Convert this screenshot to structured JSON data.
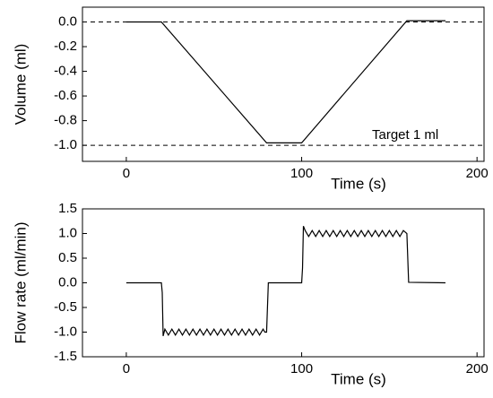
{
  "chart_data": [
    {
      "type": "line",
      "y_label": "Volume (ml)",
      "x_label": "Time (s)",
      "x": [
        0,
        20,
        80,
        100,
        160,
        182
      ],
      "values": [
        0,
        0,
        -0.98,
        -0.98,
        0.01,
        0.01
      ],
      "color": "#000000",
      "hlines": [
        0,
        -1
      ],
      "annotation": "Target 1 ml",
      "xlim": [
        -25,
        204
      ],
      "xticks": [
        0,
        100,
        200
      ],
      "ylim": [
        -1.13,
        0.12
      ],
      "yticks": [
        {
          "value": 0,
          "label": "0.0"
        },
        -0.2,
        -0.4,
        -0.6,
        -0.8,
        {
          "value": -1,
          "label": "-1.0"
        }
      ]
    },
    {
      "type": "line",
      "y_label": "Flow rate (ml/min)",
      "x_label": "Time (s)",
      "x": [
        0,
        20,
        20.5,
        21,
        22,
        24,
        26,
        28,
        30,
        32,
        34,
        36,
        38,
        40,
        42,
        44,
        46,
        48,
        50,
        52,
        54,
        56,
        58,
        60,
        62,
        64,
        66,
        68,
        70,
        72,
        74,
        76,
        78,
        79,
        80,
        81,
        100,
        100.5,
        101,
        102,
        104,
        106,
        108,
        110,
        112,
        114,
        116,
        118,
        120,
        122,
        124,
        126,
        128,
        130,
        132,
        134,
        136,
        138,
        140,
        142,
        144,
        146,
        148,
        150,
        152,
        154,
        156,
        158,
        160,
        161,
        182
      ],
      "values": [
        0,
        0,
        -0.2,
        -1.08,
        -0.94,
        -1.06,
        -0.94,
        -1.06,
        -0.94,
        -1.06,
        -0.94,
        -1.06,
        -0.94,
        -1.06,
        -0.94,
        -1.06,
        -0.94,
        -1.06,
        -0.94,
        -1.06,
        -0.94,
        -1.06,
        -0.94,
        -1.06,
        -0.94,
        -1.06,
        -0.94,
        -1.06,
        -0.94,
        -1.06,
        -0.94,
        -1.06,
        -0.94,
        -1.0,
        -1.0,
        0,
        0,
        0.3,
        1.15,
        1.06,
        0.94,
        1.06,
        0.94,
        1.06,
        0.94,
        1.06,
        0.94,
        1.06,
        0.94,
        1.06,
        0.94,
        1.06,
        0.94,
        1.06,
        0.94,
        1.06,
        0.94,
        1.06,
        0.94,
        1.06,
        0.94,
        1.06,
        0.94,
        1.06,
        0.94,
        1.06,
        0.94,
        1.06,
        1.0,
        0.01,
        0
      ],
      "color": "#000000",
      "xlim": [
        -25,
        204
      ],
      "xticks": [
        0,
        100,
        200
      ],
      "ylim": [
        -1.5,
        1.5
      ],
      "yticks": [
        1.5,
        {
          "value": 1,
          "label": "1.0"
        },
        0.5,
        {
          "value": 0,
          "label": "0.0"
        },
        -0.5,
        {
          "value": -1,
          "label": "-1.0"
        },
        -1.5
      ]
    }
  ]
}
